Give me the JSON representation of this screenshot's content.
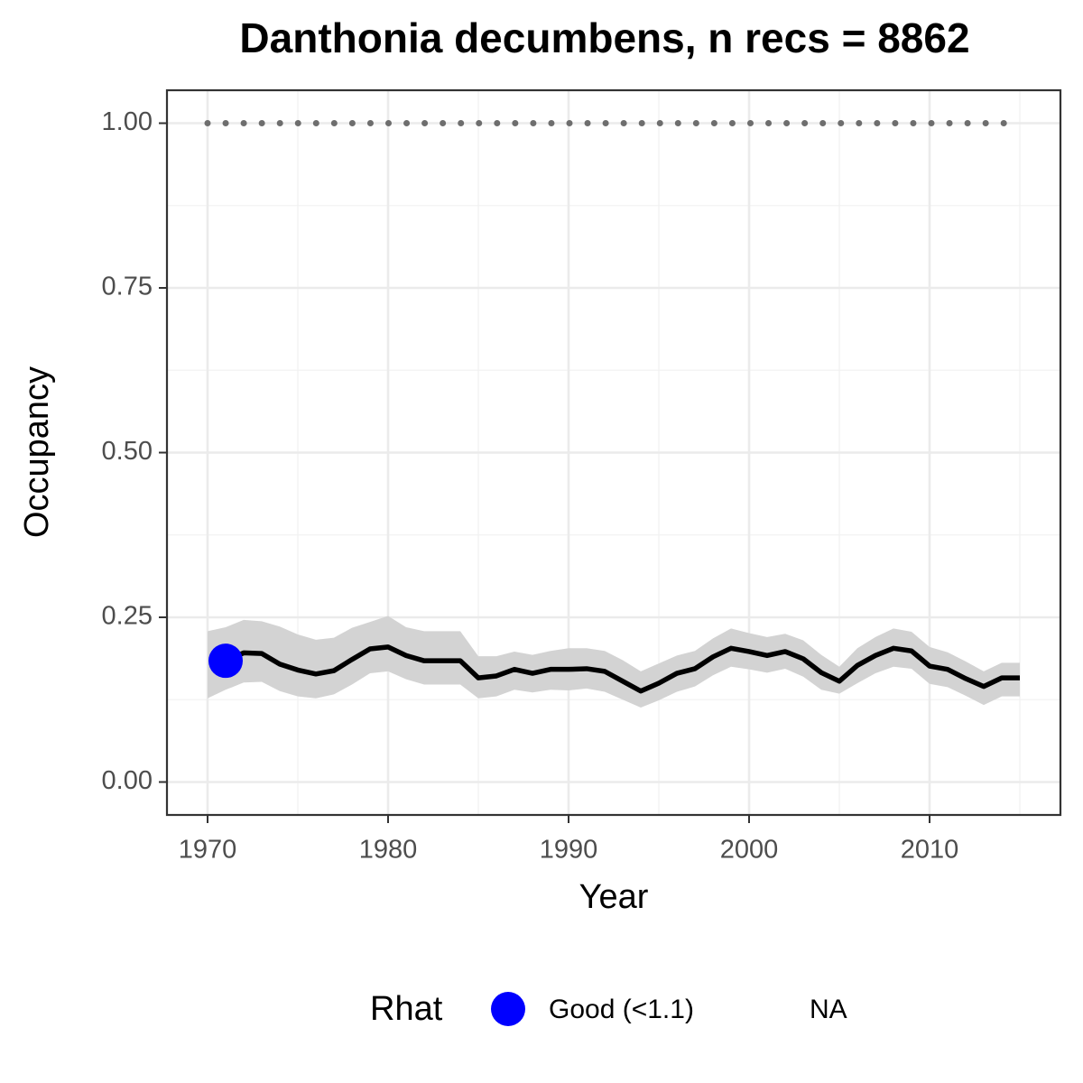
{
  "chart_data": {
    "type": "line",
    "title": "Danthonia decumbens, n recs = 8862",
    "x_label": "Year",
    "y_label": "Occupancy",
    "x": [
      1970,
      1971,
      1972,
      1973,
      1974,
      1975,
      1976,
      1977,
      1978,
      1979,
      1980,
      1981,
      1982,
      1983,
      1984,
      1985,
      1986,
      1987,
      1988,
      1989,
      1990,
      1991,
      1992,
      1993,
      1994,
      1995,
      1996,
      1997,
      1998,
      1999,
      2000,
      2001,
      2002,
      2003,
      2004,
      2005,
      2006,
      2007,
      2008,
      2009,
      2010,
      2011,
      2012,
      2013,
      2014,
      2015
    ],
    "values": [
      null,
      0.184,
      0.196,
      0.195,
      0.179,
      0.17,
      0.164,
      0.169,
      0.186,
      0.202,
      0.205,
      0.192,
      0.184,
      0.184,
      0.184,
      0.158,
      0.161,
      0.171,
      0.165,
      0.171,
      0.171,
      0.172,
      0.168,
      0.153,
      0.138,
      0.15,
      0.165,
      0.172,
      0.19,
      0.203,
      0.198,
      0.192,
      0.198,
      0.187,
      0.166,
      0.153,
      0.177,
      0.192,
      0.203,
      0.199,
      0.176,
      0.171,
      0.157,
      0.145,
      0.158,
      0.158
    ],
    "upper": [
      0.229,
      0.235,
      0.246,
      0.244,
      0.236,
      0.224,
      0.216,
      0.219,
      0.234,
      0.243,
      0.252,
      0.235,
      0.229,
      0.229,
      0.229,
      0.191,
      0.191,
      0.198,
      0.193,
      0.199,
      0.203,
      0.203,
      0.199,
      0.185,
      0.168,
      0.18,
      0.192,
      0.199,
      0.218,
      0.233,
      0.226,
      0.22,
      0.225,
      0.215,
      0.193,
      0.175,
      0.203,
      0.22,
      0.233,
      0.228,
      0.205,
      0.197,
      0.183,
      0.168,
      0.181,
      0.181
    ],
    "lower": [
      0.127,
      0.14,
      0.151,
      0.152,
      0.138,
      0.13,
      0.127,
      0.133,
      0.148,
      0.165,
      0.168,
      0.156,
      0.148,
      0.148,
      0.148,
      0.127,
      0.13,
      0.14,
      0.136,
      0.14,
      0.139,
      0.142,
      0.137,
      0.125,
      0.113,
      0.124,
      0.137,
      0.145,
      0.162,
      0.175,
      0.171,
      0.166,
      0.172,
      0.16,
      0.14,
      0.134,
      0.15,
      0.165,
      0.175,
      0.172,
      0.149,
      0.144,
      0.131,
      0.117,
      0.13,
      0.13
    ],
    "rhat_points": [
      null,
      0.184,
      null,
      null,
      null,
      null,
      null,
      null,
      null,
      null,
      null,
      null,
      null,
      null,
      null,
      null,
      null,
      null,
      null,
      null,
      null,
      null,
      null,
      null,
      null,
      null,
      null,
      null,
      null,
      null,
      null,
      null,
      null,
      null,
      null,
      null,
      null,
      null,
      null,
      null,
      null,
      null,
      null,
      null,
      null,
      null
    ],
    "reference_y": 1,
    "line_color": "#000000",
    "ribbon_color": "#d3d3d3",
    "reference_color": "#6e6e6e",
    "legend": {
      "title": "Rhat",
      "entries": [
        {
          "name": "Good (<1.1)",
          "color": "#0000ff"
        },
        {
          "name": "NA"
        }
      ]
    },
    "xlim": [
      1967.75,
      2017.25
    ],
    "ylim": [
      -0.05,
      1.05
    ],
    "xticks": [
      1970,
      1980,
      1990,
      2000,
      2010
    ],
    "yticks": [
      {
        "value": 0,
        "label": "0.00"
      },
      {
        "value": 0.25,
        "label": "0.25"
      },
      {
        "value": 0.5,
        "label": "0.50"
      },
      {
        "value": 0.75,
        "label": "0.75"
      },
      {
        "value": 1,
        "label": "1.00"
      }
    ],
    "grid": true
  }
}
